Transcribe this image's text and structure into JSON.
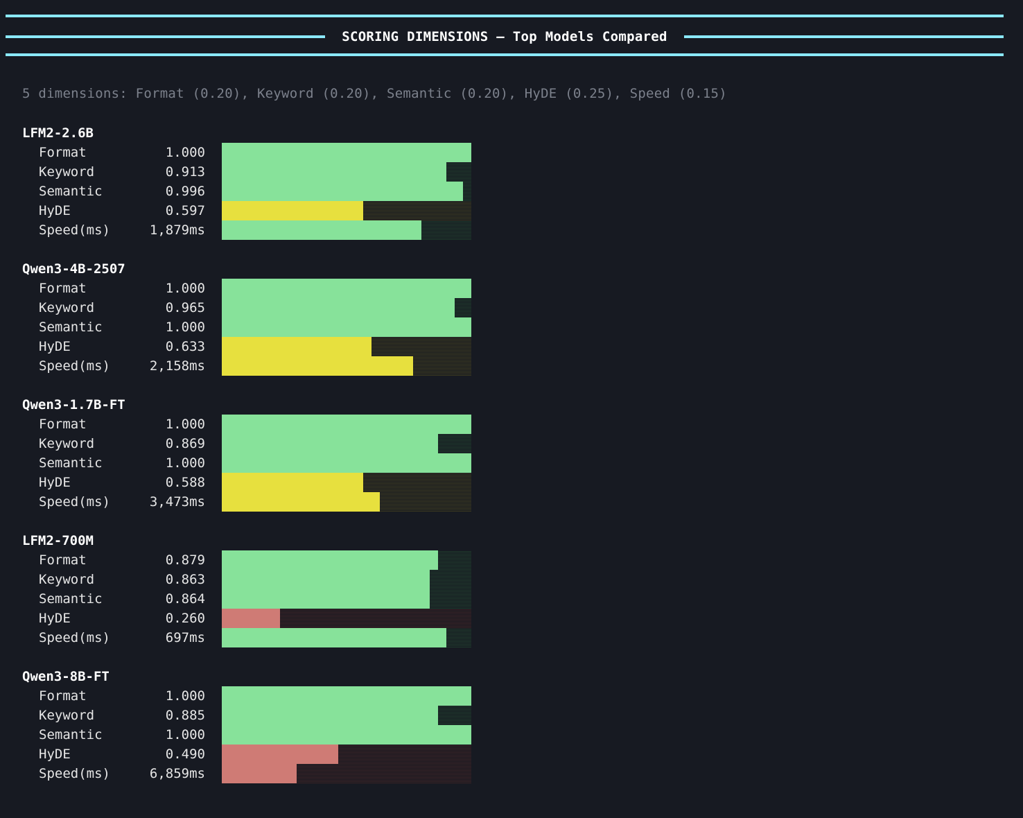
{
  "header": {
    "title": "SCORING DIMENSIONS — Top Models Compared"
  },
  "subtitle": "5 dimensions: Format (0.20), Keyword (0.20), Semantic (0.20), HyDE (0.25), Speed (0.15)",
  "colors": {
    "background": "#171a22",
    "rule": "#8be9fd",
    "green": "#87e29a",
    "green_track": "#1f3a2c",
    "yellow": "#e7e03e",
    "yellow_track": "#3a3820",
    "red": "#cf7b75",
    "red_track": "#3a2225"
  },
  "models": [
    {
      "name": "LFM2-2.6B",
      "metrics": [
        {
          "label": "Format",
          "value": "1.000",
          "fill": 1.0,
          "color": "green"
        },
        {
          "label": "Keyword",
          "value": "0.913",
          "fill": 0.9,
          "color": "green"
        },
        {
          "label": "Semantic",
          "value": "0.996",
          "fill": 0.967,
          "color": "green"
        },
        {
          "label": "HyDE",
          "value": "0.597",
          "fill": 0.567,
          "color": "yellow"
        },
        {
          "label": "Speed(ms)",
          "value": "1,879ms",
          "fill": 0.8,
          "color": "green"
        }
      ]
    },
    {
      "name": "Qwen3-4B-2507",
      "metrics": [
        {
          "label": "Format",
          "value": "1.000",
          "fill": 1.0,
          "color": "green"
        },
        {
          "label": "Keyword",
          "value": "0.965",
          "fill": 0.933,
          "color": "green"
        },
        {
          "label": "Semantic",
          "value": "1.000",
          "fill": 1.0,
          "color": "green"
        },
        {
          "label": "HyDE",
          "value": "0.633",
          "fill": 0.6,
          "color": "yellow"
        },
        {
          "label": "Speed(ms)",
          "value": "2,158ms",
          "fill": 0.767,
          "color": "yellow"
        }
      ]
    },
    {
      "name": "Qwen3-1.7B-FT",
      "metrics": [
        {
          "label": "Format",
          "value": "1.000",
          "fill": 1.0,
          "color": "green"
        },
        {
          "label": "Keyword",
          "value": "0.869",
          "fill": 0.867,
          "color": "green"
        },
        {
          "label": "Semantic",
          "value": "1.000",
          "fill": 1.0,
          "color": "green"
        },
        {
          "label": "HyDE",
          "value": "0.588",
          "fill": 0.567,
          "color": "yellow"
        },
        {
          "label": "Speed(ms)",
          "value": "3,473ms",
          "fill": 0.633,
          "color": "yellow"
        }
      ]
    },
    {
      "name": "LFM2-700M",
      "metrics": [
        {
          "label": "Format",
          "value": "0.879",
          "fill": 0.867,
          "color": "green"
        },
        {
          "label": "Keyword",
          "value": "0.863",
          "fill": 0.833,
          "color": "green"
        },
        {
          "label": "Semantic",
          "value": "0.864",
          "fill": 0.833,
          "color": "green"
        },
        {
          "label": "HyDE",
          "value": "0.260",
          "fill": 0.233,
          "color": "red"
        },
        {
          "label": "Speed(ms)",
          "value": "697ms",
          "fill": 0.9,
          "color": "green"
        }
      ]
    },
    {
      "name": "Qwen3-8B-FT",
      "metrics": [
        {
          "label": "Format",
          "value": "1.000",
          "fill": 1.0,
          "color": "green"
        },
        {
          "label": "Keyword",
          "value": "0.885",
          "fill": 0.867,
          "color": "green"
        },
        {
          "label": "Semantic",
          "value": "1.000",
          "fill": 1.0,
          "color": "green"
        },
        {
          "label": "HyDE",
          "value": "0.490",
          "fill": 0.467,
          "color": "red"
        },
        {
          "label": "Speed(ms)",
          "value": "6,859ms",
          "fill": 0.3,
          "color": "red"
        }
      ]
    }
  ]
}
